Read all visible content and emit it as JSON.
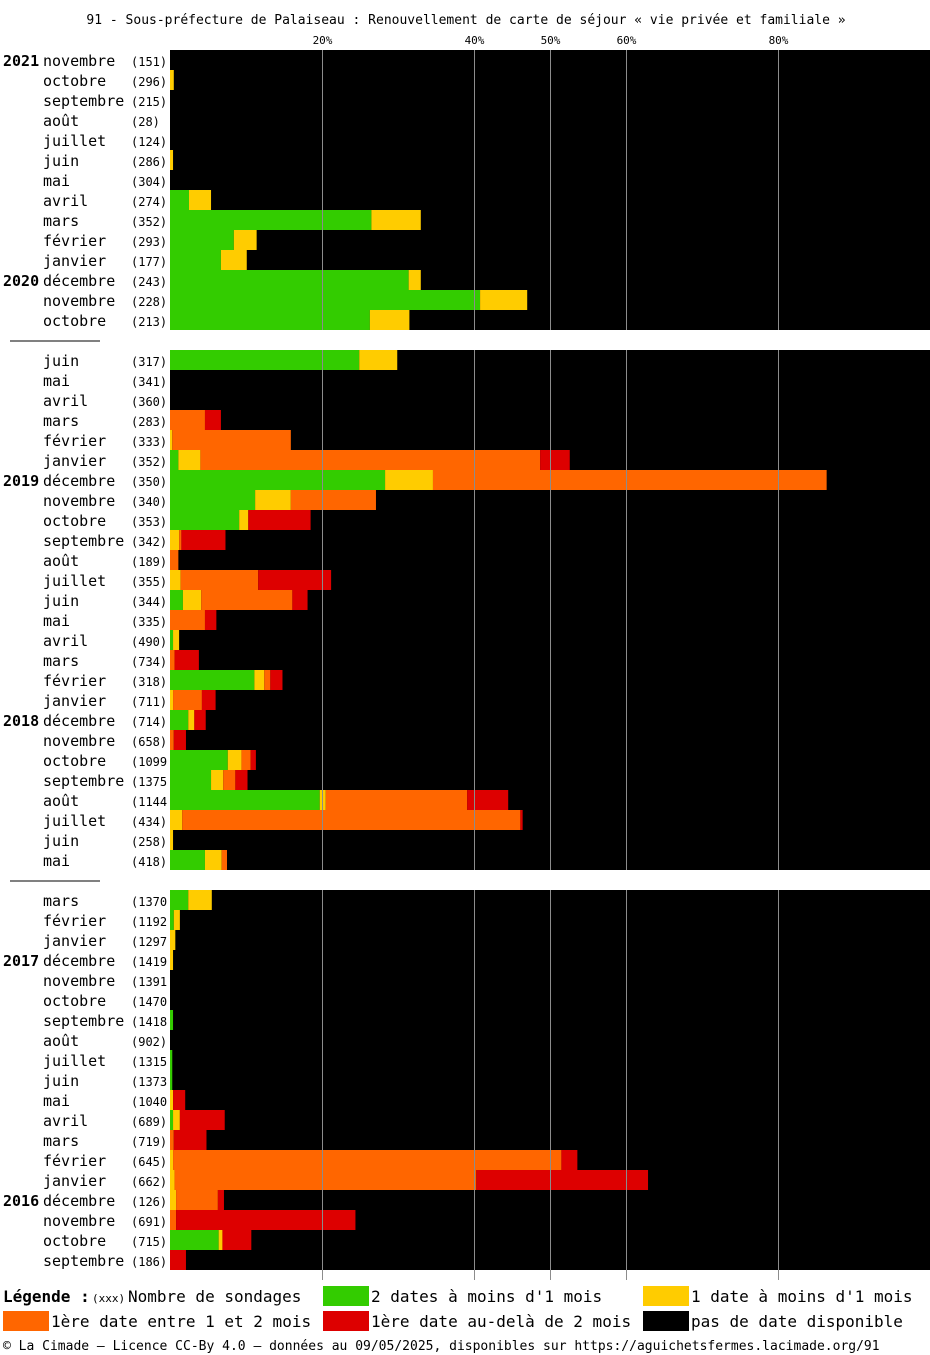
{
  "chart_data": {
    "type": "bar",
    "orientation": "horizontal",
    "stacked": true,
    "title": "91 - Sous-préfecture de Palaiseau : Renouvellement de carte de séjour « vie privée et familiale »",
    "x_ticks": [
      {
        "value": 20,
        "label": "20%"
      },
      {
        "value": 40,
        "label": "40%"
      },
      {
        "value": 50,
        "label": "50%"
      },
      {
        "value": 60,
        "label": "60%"
      },
      {
        "value": 80,
        "label": "80%"
      }
    ],
    "xlim": [
      0,
      100
    ],
    "grid": true,
    "series_order": [
      "green",
      "yellow",
      "orange",
      "red"
    ],
    "colors": {
      "green": "#33cc00",
      "yellow": "#ffcc00",
      "orange": "#ff6600",
      "red": "#dd0000",
      "black": "#000000"
    },
    "groups": [
      {
        "rows": [
          {
            "year": "2021",
            "month": "novembre",
            "count": "(151)",
            "v": [
              0,
              0,
              0,
              0
            ]
          },
          {
            "year": "",
            "month": "octobre",
            "count": "(296)",
            "v": [
              0,
              0.5,
              0,
              0
            ]
          },
          {
            "year": "",
            "month": "septembre",
            "count": "(215)",
            "v": [
              0,
              0,
              0,
              0
            ]
          },
          {
            "year": "",
            "month": "août",
            "count": "(28)",
            "v": [
              0,
              0,
              0,
              0
            ]
          },
          {
            "year": "",
            "month": "juillet",
            "count": "(124)",
            "v": [
              0,
              0,
              0,
              0
            ]
          },
          {
            "year": "",
            "month": "juin",
            "count": "(286)",
            "v": [
              0,
              0.4,
              0,
              0
            ]
          },
          {
            "year": "",
            "month": "mai",
            "count": "(304)",
            "v": [
              0,
              0,
              0,
              0
            ]
          },
          {
            "year": "",
            "month": "avril",
            "count": "(274)",
            "v": [
              2.5,
              2.9,
              0,
              0
            ]
          },
          {
            "year": "",
            "month": "mars",
            "count": "(352)",
            "v": [
              26.5,
              6.5,
              0,
              0
            ]
          },
          {
            "year": "",
            "month": "février",
            "count": "(293)",
            "v": [
              8.4,
              3.0,
              0,
              0
            ]
          },
          {
            "year": "",
            "month": "janvier",
            "count": "(177)",
            "v": [
              6.7,
              3.4,
              0,
              0
            ]
          },
          {
            "year": "2020",
            "month": "décembre",
            "count": "(243)",
            "v": [
              31.4,
              1.6,
              0,
              0
            ]
          },
          {
            "year": "",
            "month": "novembre",
            "count": "(228)",
            "v": [
              40.8,
              6.2,
              0,
              0
            ]
          },
          {
            "year": "",
            "month": "octobre",
            "count": "(213)",
            "v": [
              26.3,
              5.2,
              0,
              0
            ]
          }
        ]
      },
      {
        "rows": [
          {
            "year": "",
            "month": "juin",
            "count": "(317)",
            "v": [
              24.9,
              5.0,
              0,
              0
            ]
          },
          {
            "year": "",
            "month": "mai",
            "count": "(341)",
            "v": [
              0,
              0,
              0,
              0
            ]
          },
          {
            "year": "",
            "month": "avril",
            "count": "(360)",
            "v": [
              0,
              0,
              0,
              0
            ]
          },
          {
            "year": "",
            "month": "mars",
            "count": "(283)",
            "v": [
              0,
              0,
              4.6,
              2.1
            ]
          },
          {
            "year": "",
            "month": "février",
            "count": "(333)",
            "v": [
              0,
              0.3,
              15.6,
              0
            ]
          },
          {
            "year": "",
            "month": "janvier",
            "count": "(352)",
            "v": [
              1.1,
              2.9,
              44.7,
              3.9
            ]
          },
          {
            "year": "2019",
            "month": "décembre",
            "count": "(350)",
            "v": [
              28.3,
              6.3,
              51.8,
              0
            ]
          },
          {
            "year": "",
            "month": "novembre",
            "count": "(340)",
            "v": [
              11.2,
              4.7,
              11.2,
              0
            ]
          },
          {
            "year": "",
            "month": "octobre",
            "count": "(353)",
            "v": [
              9.1,
              1.2,
              0,
              8.2
            ]
          },
          {
            "year": "",
            "month": "septembre",
            "count": "(342)",
            "v": [
              0,
              1.2,
              0.3,
              5.8
            ]
          },
          {
            "year": "",
            "month": "août",
            "count": "(189)",
            "v": [
              0,
              0,
              1.1,
              0
            ]
          },
          {
            "year": "",
            "month": "juillet",
            "count": "(355)",
            "v": [
              0,
              1.4,
              10.2,
              9.6
            ]
          },
          {
            "year": "",
            "month": "juin",
            "count": "(344)",
            "v": [
              1.7,
              2.4,
              12.0,
              2.0
            ]
          },
          {
            "year": "",
            "month": "mai",
            "count": "(335)",
            "v": [
              0,
              0,
              4.6,
              1.5
            ]
          },
          {
            "year": "",
            "month": "avril",
            "count": "(490)",
            "v": [
              0.4,
              0.8,
              0,
              0
            ]
          },
          {
            "year": "",
            "month": "mars",
            "count": "(734)",
            "v": [
              0,
              0,
              0.6,
              3.2
            ]
          },
          {
            "year": "",
            "month": "février",
            "count": "(318)",
            "v": [
              11.1,
              1.3,
              0.8,
              1.6
            ]
          },
          {
            "year": "",
            "month": "janvier",
            "count": "(711)",
            "v": [
              0,
              0.4,
              3.8,
              1.8
            ]
          },
          {
            "year": "2018",
            "month": "décembre",
            "count": "(714)",
            "v": [
              2.4,
              0.8,
              0,
              1.5
            ]
          },
          {
            "year": "",
            "month": "novembre",
            "count": "(658)",
            "v": [
              0,
              0,
              0.5,
              1.6
            ]
          },
          {
            "year": "",
            "month": "octobre",
            "count": "(1099",
            "v": [
              7.6,
              1.8,
              1.2,
              0.7
            ]
          },
          {
            "year": "",
            "month": "septembre",
            "count": "(1375",
            "v": [
              5.4,
              1.6,
              1.6,
              1.6
            ]
          },
          {
            "year": "",
            "month": "août",
            "count": "(1144",
            "v": [
              19.7,
              0.8,
              18.6,
              5.4
            ]
          },
          {
            "year": "",
            "month": "juillet",
            "count": "(434)",
            "v": [
              0,
              1.6,
              44.5,
              0.3
            ]
          },
          {
            "year": "",
            "month": "juin",
            "count": "(258)",
            "v": [
              0,
              0.4,
              0,
              0
            ]
          },
          {
            "year": "",
            "month": "mai",
            "count": "(418)",
            "v": [
              4.6,
              2.2,
              0.7,
              0
            ]
          }
        ]
      },
      {
        "rows": [
          {
            "year": "",
            "month": "mars",
            "count": "(1370",
            "v": [
              2.4,
              3.1,
              0,
              0
            ]
          },
          {
            "year": "",
            "month": "février",
            "count": "(1192",
            "v": [
              0.5,
              0.8,
              0,
              0
            ]
          },
          {
            "year": "",
            "month": "janvier",
            "count": "(1297",
            "v": [
              0,
              0.7,
              0,
              0
            ]
          },
          {
            "year": "2017",
            "month": "décembre",
            "count": "(1419",
            "v": [
              0,
              0.4,
              0,
              0
            ]
          },
          {
            "year": "",
            "month": "novembre",
            "count": "(1391",
            "v": [
              0,
              0,
              0,
              0
            ]
          },
          {
            "year": "",
            "month": "octobre",
            "count": "(1470",
            "v": [
              0,
              0,
              0,
              0
            ]
          },
          {
            "year": "",
            "month": "septembre",
            "count": "(1418",
            "v": [
              0.4,
              0,
              0,
              0
            ]
          },
          {
            "year": "",
            "month": "août",
            "count": "(902)",
            "v": [
              0,
              0,
              0,
              0
            ]
          },
          {
            "year": "",
            "month": "juillet",
            "count": "(1315",
            "v": [
              0.3,
              0,
              0,
              0
            ]
          },
          {
            "year": "",
            "month": "juin",
            "count": "(1373",
            "v": [
              0.3,
              0,
              0,
              0
            ]
          },
          {
            "year": "",
            "month": "mai",
            "count": "(1040",
            "v": [
              0,
              0.4,
              0,
              1.6
            ]
          },
          {
            "year": "",
            "month": "avril",
            "count": "(689)",
            "v": [
              0.4,
              0.9,
              0,
              5.9
            ]
          },
          {
            "year": "",
            "month": "mars",
            "count": "(719)",
            "v": [
              0,
              0,
              0.5,
              4.3
            ]
          },
          {
            "year": "",
            "month": "février",
            "count": "(645)",
            "v": [
              0,
              0.4,
              51.1,
              2.1
            ]
          },
          {
            "year": "",
            "month": "janvier",
            "count": "(662)",
            "v": [
              0,
              0.6,
              39.7,
              22.6
            ]
          },
          {
            "year": "2016",
            "month": "décembre",
            "count": "(126)",
            "v": [
              0,
              0.8,
              5.5,
              0.8
            ]
          },
          {
            "year": "",
            "month": "novembre",
            "count": "(691)",
            "v": [
              0,
              0,
              0.8,
              23.6
            ]
          },
          {
            "year": "",
            "month": "octobre",
            "count": "(715)",
            "v": [
              6.4,
              0.5,
              0,
              3.8
            ]
          },
          {
            "year": "",
            "month": "septembre",
            "count": "(186)",
            "v": [
              0,
              0,
              0,
              2.1
            ]
          }
        ]
      }
    ],
    "legend": {
      "title": "Légende :",
      "count_marker": "(xxx)",
      "count_label": "Nombre de sondages",
      "items": [
        {
          "key": "green",
          "label": "2 dates à moins d'1 mois"
        },
        {
          "key": "yellow",
          "label": "1 date à moins d'1 mois"
        },
        {
          "key": "orange",
          "label": "1ère date entre 1 et 2 mois"
        },
        {
          "key": "red",
          "label": "1ère date au-delà de 2 mois"
        },
        {
          "key": "black",
          "label": "pas de date disponible"
        }
      ]
    }
  },
  "footer": "© La Cimade — Licence CC-By 4.0 — données au 09/05/2025, disponibles sur https://aguichetsfermes.lacimade.org/91"
}
